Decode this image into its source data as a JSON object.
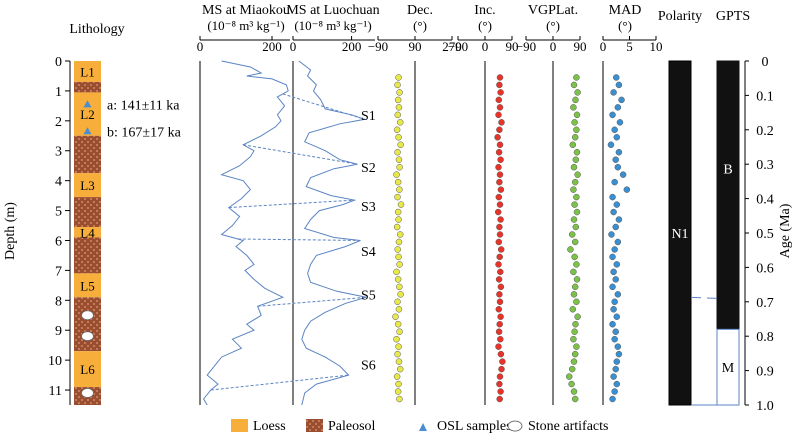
{
  "chart_data": {
    "type": "composite-stratigraphic-plot",
    "depth_axis": {
      "label": "Depth (m)",
      "range": [
        0,
        11.5
      ],
      "ticks": [
        0,
        1,
        2,
        3,
        4,
        5,
        6,
        7,
        8,
        9,
        10,
        11
      ]
    },
    "age_axis": {
      "label": "Age (Ma)",
      "range": [
        0,
        1.0
      ],
      "ticks": [
        "0",
        "0.1",
        "0.2",
        "0.3",
        "0.4",
        "0.5",
        "0.6",
        "0.7",
        "0.8",
        "0.9",
        "1.0"
      ]
    },
    "lithology": {
      "title": "Lithology",
      "units": [
        {
          "type": "loess",
          "top": 0,
          "bottom": 0.7,
          "label": "L1"
        },
        {
          "type": "paleosol",
          "top": 0.7,
          "bottom": 1.05,
          "label": ""
        },
        {
          "type": "loess",
          "top": 1.05,
          "bottom": 2.5,
          "label": "L2"
        },
        {
          "type": "paleosol",
          "top": 2.5,
          "bottom": 3.75,
          "label": ""
        },
        {
          "type": "loess",
          "top": 3.75,
          "bottom": 4.55,
          "label": "L3"
        },
        {
          "type": "paleosol",
          "top": 4.55,
          "bottom": 5.55,
          "label": ""
        },
        {
          "type": "loess",
          "top": 5.55,
          "bottom": 5.9,
          "label": "L4"
        },
        {
          "type": "paleosol",
          "top": 5.9,
          "bottom": 7.1,
          "label": ""
        },
        {
          "type": "loess",
          "top": 7.1,
          "bottom": 7.9,
          "label": "L5"
        },
        {
          "type": "paleosol",
          "top": 7.9,
          "bottom": 9.7,
          "label": ""
        },
        {
          "type": "loess",
          "top": 9.7,
          "bottom": 10.9,
          "label": "L6"
        },
        {
          "type": "paleosol",
          "top": 10.9,
          "bottom": 11.5,
          "label": ""
        }
      ],
      "osl_samples": [
        {
          "depth": 1.45,
          "label": "a: 141±11 ka"
        },
        {
          "depth": 2.35,
          "label": "b: 167±17 ka"
        }
      ],
      "stone_artifacts_depths": [
        8.5,
        9.2,
        11.1
      ]
    },
    "ms_miaokou": {
      "title": "MS at Miaokou",
      "unit": "(10⁻⁸ m³ kg⁻¹)",
      "xlim": [
        0,
        250
      ],
      "ticks": [
        0,
        200
      ],
      "depth": [
        0,
        0.2,
        0.4,
        0.5,
        0.6,
        0.8,
        1.0,
        1.2,
        1.5,
        1.8,
        2.0,
        2.2,
        2.5,
        2.8,
        3.0,
        3.2,
        3.5,
        3.8,
        4.0,
        4.3,
        4.6,
        4.9,
        5.2,
        5.5,
        5.8,
        6.0,
        6.2,
        6.5,
        6.8,
        7.0,
        7.3,
        7.6,
        7.9,
        8.2,
        8.5,
        8.8,
        9.0,
        9.3,
        9.6,
        9.9,
        10.2,
        10.5,
        10.8,
        11.0,
        11.3,
        11.5
      ],
      "values": [
        60,
        140,
        170,
        130,
        200,
        240,
        245,
        215,
        235,
        215,
        225,
        210,
        170,
        120,
        150,
        140,
        110,
        60,
        120,
        140,
        115,
        80,
        110,
        90,
        60,
        120,
        100,
        130,
        150,
        125,
        150,
        180,
        230,
        160,
        170,
        130,
        150,
        90,
        115,
        60,
        40,
        20,
        50,
        30,
        10,
        20
      ]
    },
    "ms_luochuan": {
      "title": "MS at Luochuan",
      "unit": "(10⁻⁸ m³ kg⁻¹)",
      "xlim": [
        0,
        280
      ],
      "ticks": [
        0,
        200
      ],
      "depth": [
        0,
        0.3,
        0.5,
        0.8,
        1.0,
        1.3,
        1.6,
        1.8,
        1.95,
        2.1,
        2.4,
        2.7,
        3.0,
        3.3,
        3.45,
        3.6,
        3.9,
        4.2,
        4.5,
        4.65,
        4.8,
        5.0,
        5.3,
        5.6,
        5.9,
        6.0,
        6.2,
        6.5,
        6.8,
        7.1,
        7.4,
        7.7,
        7.9,
        8.1,
        8.4,
        8.7,
        9.0,
        9.3,
        9.6,
        9.9,
        10.2,
        10.5,
        10.8,
        11.1,
        11.5
      ],
      "values": [
        20,
        60,
        50,
        80,
        70,
        95,
        110,
        200,
        245,
        160,
        55,
        40,
        110,
        160,
        220,
        140,
        60,
        45,
        130,
        210,
        170,
        90,
        60,
        40,
        140,
        230,
        180,
        80,
        60,
        50,
        60,
        150,
        250,
        180,
        110,
        60,
        40,
        30,
        45,
        110,
        160,
        190,
        80,
        40,
        30
      ]
    },
    "ms_correlations": [
      {
        "label": "S1",
        "miaokou_depth": 1.1,
        "luochuan_depth": 1.95,
        "label_depth": 1.8
      },
      {
        "label": "S2",
        "miaokou_depth": 2.8,
        "luochuan_depth": 3.45,
        "label_depth": 3.55
      },
      {
        "label": "S3",
        "miaokou_depth": 4.9,
        "luochuan_depth": 4.65,
        "label_depth": 4.85
      },
      {
        "label": "S4",
        "miaokou_depth": 5.95,
        "luochuan_depth": 6.0,
        "label_depth": 6.35
      },
      {
        "label": "S5",
        "miaokou_depth": 8.2,
        "luochuan_depth": 7.9,
        "label_depth": 7.8
      },
      {
        "label": "S6",
        "miaokou_depth": 11.0,
        "luochuan_depth": 10.5,
        "label_depth": 10.15
      }
    ],
    "paleomag_depths": [
      0.55,
      0.8,
      1.05,
      1.3,
      1.55,
      1.8,
      2.05,
      2.3,
      2.55,
      2.8,
      3.05,
      3.3,
      3.55,
      3.8,
      4.05,
      4.3,
      4.55,
      4.8,
      5.05,
      5.3,
      5.55,
      5.8,
      6.05,
      6.3,
      6.55,
      6.8,
      7.05,
      7.3,
      7.55,
      7.8,
      8.05,
      8.3,
      8.55,
      8.8,
      9.05,
      9.3,
      9.55,
      9.8,
      10.05,
      10.3,
      10.55,
      10.8,
      11.05,
      11.3
    ],
    "declination": {
      "title": "Dec.",
      "unit": "(°)",
      "xlim": [
        -90,
        270
      ],
      "ticks": [
        "−90",
        "90",
        "270"
      ],
      "color": "#e8e84a",
      "values": [
        10,
        5,
        15,
        8,
        12,
        6,
        18,
        3,
        10,
        20,
        5,
        12,
        15,
        0,
        8,
        14,
        5,
        22,
        8,
        10,
        3,
        18,
        12,
        6,
        10,
        15,
        0,
        8,
        14,
        20,
        5,
        12,
        -5,
        8,
        15,
        0,
        10,
        5,
        12,
        18,
        3,
        10,
        8,
        14
      ]
    },
    "inclination": {
      "title": "Inc.",
      "unit": "(°)",
      "xlim": [
        -90,
        90
      ],
      "ticks": [
        "−90",
        "0",
        "90"
      ],
      "color": "#e8332a",
      "values": [
        50,
        48,
        52,
        46,
        50,
        45,
        55,
        48,
        42,
        50,
        47,
        52,
        45,
        50,
        48,
        53,
        46,
        50,
        44,
        52,
        48,
        50,
        46,
        54,
        49,
        45,
        51,
        47,
        53,
        48,
        50,
        46,
        52,
        49,
        47,
        51,
        45,
        53,
        58,
        55,
        50,
        48,
        52,
        49
      ]
    },
    "vgp_latitude": {
      "title": "VGPLat.",
      "unit": "(°)",
      "xlim": [
        -90,
        90
      ],
      "ticks": [
        "−90",
        "0",
        "90"
      ],
      "color": "#7cc24a",
      "values": [
        78,
        70,
        82,
        75,
        68,
        80,
        72,
        78,
        74,
        66,
        80,
        76,
        70,
        82,
        74,
        68,
        78,
        72,
        80,
        70,
        76,
        64,
        74,
        58,
        72,
        78,
        68,
        80,
        74,
        70,
        78,
        66,
        82,
        75,
        72,
        68,
        78,
        74,
        70,
        64,
        54,
        62,
        70,
        74
      ]
    },
    "mad": {
      "title": "MAD",
      "unit": "(°)",
      "xlim": [
        0,
        10
      ],
      "ticks": [
        "0",
        "5",
        "10"
      ],
      "color": "#3a8fd1",
      "values": [
        2.5,
        3.0,
        2.0,
        3.5,
        2.8,
        1.8,
        3.2,
        2.2,
        2.6,
        1.5,
        3.0,
        2.4,
        2.8,
        3.8,
        2.2,
        4.5,
        1.8,
        2.6,
        2.0,
        3.0,
        2.4,
        1.6,
        2.8,
        2.2,
        1.8,
        2.6,
        2.0,
        2.4,
        1.8,
        2.8,
        2.2,
        2.0,
        2.6,
        1.8,
        2.4,
        2.2,
        2.8,
        3.0,
        2.6,
        2.4,
        2.0,
        2.6,
        2.2,
        1.8
      ]
    },
    "polarity": {
      "title": "Polarity",
      "zones": [
        {
          "top": 0,
          "bottom": 11.5,
          "state": "normal",
          "label": "N1"
        }
      ]
    },
    "gpts": {
      "title": "GPTS",
      "zones": [
        {
          "top": 0,
          "bottom": 0.78,
          "state": "normal",
          "label": "B"
        },
        {
          "top": 0.78,
          "bottom": 1.0,
          "state": "reversed",
          "label": "M"
        }
      ],
      "tie_points": [
        {
          "depth": 11.5,
          "age": 1.0
        },
        {
          "depth": 7.9,
          "age": 0.69
        }
      ]
    },
    "legend": {
      "position": "bottom",
      "entries": [
        {
          "key": "loess",
          "label": "Loess"
        },
        {
          "key": "paleosol",
          "label": "Paleosol"
        },
        {
          "key": "osl",
          "label": "OSL samples"
        },
        {
          "key": "artifact",
          "label": "Stone artifacts"
        }
      ]
    },
    "colors": {
      "loess": "#f7ae3b",
      "paleosol": "#9b4d2f",
      "ms_line": "#5b84c4",
      "osl": "#4a8dd0"
    }
  }
}
